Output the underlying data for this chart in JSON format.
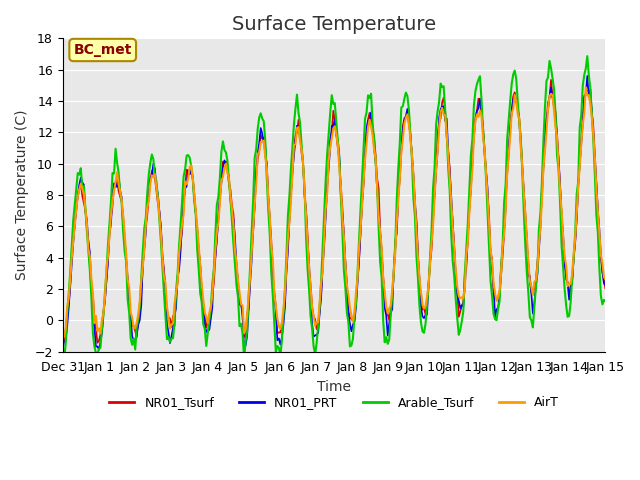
{
  "title": "Surface Temperature",
  "ylabel": "Surface Temperature (C)",
  "xlabel": "Time",
  "annotation": "BC_met",
  "ylim": [
    -2,
    18
  ],
  "yticks": [
    -2,
    0,
    2,
    4,
    6,
    8,
    10,
    12,
    14,
    16,
    18
  ],
  "legend_labels": [
    "NR01_Tsurf",
    "NR01_PRT",
    "Arable_Tsurf",
    "AirT"
  ],
  "colors": {
    "NR01_Tsurf": "#dd0000",
    "NR01_PRT": "#0000ee",
    "Arable_Tsurf": "#00cc00",
    "AirT": "#ff9900"
  },
  "bg_color": "#e8e8e8",
  "title_fontsize": 14,
  "axis_fontsize": 10,
  "tick_fontsize": 9,
  "n_points": 360,
  "time_start": 0,
  "time_end": 15.0,
  "xtick_positions": [
    0,
    1,
    2,
    3,
    4,
    5,
    6,
    7,
    8,
    9,
    10,
    11,
    12,
    13,
    14,
    15
  ],
  "xtick_labels": [
    "Dec 31",
    "Jan 1",
    "Jan 2",
    "Jan 3",
    "Jan 4",
    "Jan 5",
    "Jan 6",
    "Jan 7",
    "Jan 8",
    "Jan 9",
    "Jan 10",
    "Jan 11",
    "Jan 12",
    "Jan 13",
    "Jan 14",
    "Jan 15"
  ]
}
